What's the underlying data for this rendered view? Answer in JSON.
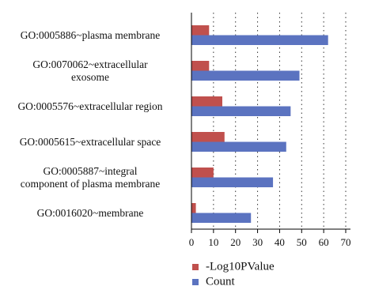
{
  "chart_data": {
    "type": "hbar",
    "categories": [
      "GO:0005886~plasma membrane",
      "GO:0070062~extracellular\nexosome",
      "GO:0005576~extracellular region",
      "GO:0005615~extracellular space",
      "GO:0005887~integral\ncomponent of plasma membrane",
      "GO:0016020~membrane"
    ],
    "series": [
      {
        "name": "-Log10PValue",
        "color": "#c0504d",
        "values": [
          8,
          8,
          14,
          15,
          10,
          2
        ]
      },
      {
        "name": "Count",
        "color": "#5b73c0",
        "values": [
          62,
          49,
          45,
          43,
          37,
          27
        ]
      }
    ],
    "xlim": [
      0,
      70
    ],
    "xticks": [
      0,
      10,
      20,
      30,
      40,
      50,
      60,
      70
    ],
    "grid": true
  }
}
